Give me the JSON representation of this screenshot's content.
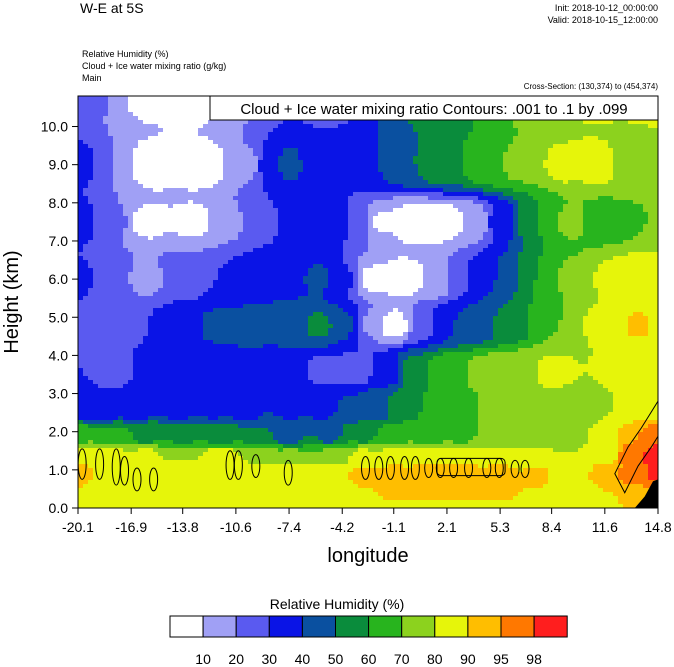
{
  "header": {
    "title": "W-E at 5S",
    "init": "Init: 2018-10-12_00:00:00",
    "valid": "Valid: 2018-10-15_12:00:00",
    "fields": [
      "Relative Humidity   (%)",
      "Cloud + Ice water mixing ratio   (g/kg)",
      "Main"
    ],
    "cross_section": "Cross-Section: (130,374) to (454,374)"
  },
  "chart_data": {
    "type": "heatmap",
    "title": "",
    "xlabel": "longitude",
    "ylabel": "Height (km)",
    "x_ticks": [
      "-20.1",
      "-16.9",
      "-13.8",
      "-10.6",
      "-7.4",
      "-4.2",
      "-1.1",
      "2.1",
      "5.3",
      "8.4",
      "11.6",
      "14.8"
    ],
    "y_ticks": [
      "0.0",
      "1.0",
      "2.0",
      "3.0",
      "4.0",
      "5.0",
      "6.0",
      "7.0",
      "8.0",
      "9.0",
      "10.0"
    ],
    "xlim": [
      -20.1,
      14.8
    ],
    "ylim": [
      0,
      10.8
    ],
    "contour_label": "Cloud + Ice water mixing ratio Contours: .001 to .1 by .099",
    "colorbar": {
      "title": "Relative Humidity  (%)",
      "levels": [
        "10",
        "20",
        "30",
        "40",
        "50",
        "60",
        "70",
        "80",
        "90",
        "95",
        "98"
      ],
      "colors": [
        "#ffffff",
        "#a0a0f5",
        "#5a5af0",
        "#0a14e6",
        "#0a50a0",
        "#0a8c3c",
        "#28b41e",
        "#8cd21e",
        "#e6f50a",
        "#ffbe00",
        "#ff7800",
        "#ff1e1e"
      ]
    },
    "fields": [
      {
        "x": -20.1,
        "y": 10.8,
        "v": 30
      },
      {
        "x": -18.0,
        "y": 10.8,
        "v": 20
      },
      {
        "x": -16.5,
        "y": 10.8,
        "v": 5
      },
      {
        "x": -13.0,
        "y": 10.8,
        "v": 5
      },
      {
        "x": -10.6,
        "y": 10.8,
        "v": 10
      },
      {
        "x": -9.0,
        "y": 10.8,
        "v": 25
      },
      {
        "x": -7.4,
        "y": 10.8,
        "v": 35
      },
      {
        "x": -5.5,
        "y": 10.8,
        "v": 25
      },
      {
        "x": -4.5,
        "y": 10.8,
        "v": 22
      },
      {
        "x": -3.0,
        "y": 10.8,
        "v": 35
      },
      {
        "x": -1.5,
        "y": 10.8,
        "v": 45
      },
      {
        "x": 0.5,
        "y": 10.8,
        "v": 60
      },
      {
        "x": 2.0,
        "y": 10.8,
        "v": 48
      },
      {
        "x": 4.0,
        "y": 10.8,
        "v": 62
      },
      {
        "x": 5.8,
        "y": 10.8,
        "v": 72
      },
      {
        "x": 8.0,
        "y": 10.8,
        "v": 80
      },
      {
        "x": 11.0,
        "y": 10.8,
        "v": 82
      },
      {
        "x": 14.8,
        "y": 10.8,
        "v": 85
      },
      {
        "x": -20.1,
        "y": 9.0,
        "v": 35
      },
      {
        "x": -18.0,
        "y": 9.0,
        "v": 20
      },
      {
        "x": -16.0,
        "y": 9.0,
        "v": 5
      },
      {
        "x": -12.5,
        "y": 9.0,
        "v": 5
      },
      {
        "x": -10.0,
        "y": 9.0,
        "v": 15
      },
      {
        "x": -8.5,
        "y": 9.0,
        "v": 35
      },
      {
        "x": -7.4,
        "y": 9.0,
        "v": 45
      },
      {
        "x": -6.0,
        "y": 9.0,
        "v": 35
      },
      {
        "x": -4.2,
        "y": 9.0,
        "v": 30
      },
      {
        "x": -2.0,
        "y": 9.0,
        "v": 40
      },
      {
        "x": 0.0,
        "y": 9.0,
        "v": 50
      },
      {
        "x": 2.0,
        "y": 9.0,
        "v": 58
      },
      {
        "x": 4.5,
        "y": 9.0,
        "v": 68
      },
      {
        "x": 6.5,
        "y": 9.0,
        "v": 72
      },
      {
        "x": 9.0,
        "y": 9.0,
        "v": 82
      },
      {
        "x": 11.6,
        "y": 9.0,
        "v": 85
      },
      {
        "x": 13.0,
        "y": 9.0,
        "v": 70
      },
      {
        "x": 14.8,
        "y": 9.0,
        "v": 75
      },
      {
        "x": -20.1,
        "y": 7.5,
        "v": 35
      },
      {
        "x": -18.0,
        "y": 7.5,
        "v": 22
      },
      {
        "x": -16.0,
        "y": 7.5,
        "v": 8
      },
      {
        "x": -13.0,
        "y": 7.5,
        "v": 8
      },
      {
        "x": -11.0,
        "y": 7.5,
        "v": 18
      },
      {
        "x": -9.0,
        "y": 7.5,
        "v": 28
      },
      {
        "x": -7.0,
        "y": 7.5,
        "v": 35
      },
      {
        "x": -5.0,
        "y": 7.5,
        "v": 38
      },
      {
        "x": -3.0,
        "y": 7.5,
        "v": 28
      },
      {
        "x": -2.0,
        "y": 7.5,
        "v": 8
      },
      {
        "x": 0.0,
        "y": 7.5,
        "v": 5
      },
      {
        "x": 2.0,
        "y": 7.5,
        "v": 5
      },
      {
        "x": 3.8,
        "y": 7.5,
        "v": 12
      },
      {
        "x": 5.3,
        "y": 7.5,
        "v": 35
      },
      {
        "x": 7.5,
        "y": 7.5,
        "v": 60
      },
      {
        "x": 9.5,
        "y": 7.5,
        "v": 72
      },
      {
        "x": 11.6,
        "y": 7.5,
        "v": 65
      },
      {
        "x": 14.8,
        "y": 7.5,
        "v": 70
      },
      {
        "x": -20.1,
        "y": 6.0,
        "v": 32
      },
      {
        "x": -18.0,
        "y": 6.0,
        "v": 22
      },
      {
        "x": -16.0,
        "y": 6.0,
        "v": 18
      },
      {
        "x": -13.8,
        "y": 6.0,
        "v": 25
      },
      {
        "x": -11.5,
        "y": 6.0,
        "v": 30
      },
      {
        "x": -9.5,
        "y": 6.0,
        "v": 35
      },
      {
        "x": -7.4,
        "y": 6.0,
        "v": 38
      },
      {
        "x": -5.5,
        "y": 6.0,
        "v": 42
      },
      {
        "x": -4.2,
        "y": 6.0,
        "v": 32
      },
      {
        "x": -2.5,
        "y": 6.0,
        "v": 8
      },
      {
        "x": -0.5,
        "y": 6.0,
        "v": 5
      },
      {
        "x": 1.5,
        "y": 6.0,
        "v": 10
      },
      {
        "x": 3.0,
        "y": 6.0,
        "v": 30
      },
      {
        "x": 5.0,
        "y": 6.0,
        "v": 40
      },
      {
        "x": 7.5,
        "y": 6.0,
        "v": 60
      },
      {
        "x": 9.5,
        "y": 6.0,
        "v": 72
      },
      {
        "x": 12.0,
        "y": 6.0,
        "v": 82
      },
      {
        "x": 13.8,
        "y": 6.0,
        "v": 88
      },
      {
        "x": 14.8,
        "y": 6.0,
        "v": 80
      },
      {
        "x": -20.1,
        "y": 4.8,
        "v": 30
      },
      {
        "x": -18.0,
        "y": 4.8,
        "v": 22
      },
      {
        "x": -16.0,
        "y": 4.8,
        "v": 30
      },
      {
        "x": -13.8,
        "y": 4.8,
        "v": 38
      },
      {
        "x": -11.5,
        "y": 4.8,
        "v": 42
      },
      {
        "x": -9.5,
        "y": 4.8,
        "v": 43
      },
      {
        "x": -7.4,
        "y": 4.8,
        "v": 45
      },
      {
        "x": -5.5,
        "y": 4.8,
        "v": 52
      },
      {
        "x": -4.0,
        "y": 4.8,
        "v": 42
      },
      {
        "x": -2.5,
        "y": 4.8,
        "v": 18
      },
      {
        "x": -1.1,
        "y": 4.8,
        "v": 5
      },
      {
        "x": 0.8,
        "y": 4.8,
        "v": 28
      },
      {
        "x": 2.1,
        "y": 4.8,
        "v": 40
      },
      {
        "x": 4.0,
        "y": 4.8,
        "v": 45
      },
      {
        "x": 6.0,
        "y": 4.8,
        "v": 55
      },
      {
        "x": 8.4,
        "y": 4.8,
        "v": 70
      },
      {
        "x": 11.6,
        "y": 4.8,
        "v": 82
      },
      {
        "x": 13.8,
        "y": 4.8,
        "v": 92
      },
      {
        "x": 14.8,
        "y": 4.8,
        "v": 85
      },
      {
        "x": -20.1,
        "y": 3.6,
        "v": 30
      },
      {
        "x": -18.0,
        "y": 3.6,
        "v": 25
      },
      {
        "x": -16.0,
        "y": 3.6,
        "v": 32
      },
      {
        "x": -13.8,
        "y": 3.6,
        "v": 32
      },
      {
        "x": -11.5,
        "y": 3.6,
        "v": 35
      },
      {
        "x": -9.0,
        "y": 3.6,
        "v": 36
      },
      {
        "x": -7.4,
        "y": 3.6,
        "v": 32
      },
      {
        "x": -5.5,
        "y": 3.6,
        "v": 28
      },
      {
        "x": -3.5,
        "y": 3.6,
        "v": 25
      },
      {
        "x": -1.5,
        "y": 3.6,
        "v": 32
      },
      {
        "x": 0.0,
        "y": 3.6,
        "v": 55
      },
      {
        "x": 2.1,
        "y": 3.6,
        "v": 68
      },
      {
        "x": 4.5,
        "y": 3.6,
        "v": 74
      },
      {
        "x": 6.5,
        "y": 3.6,
        "v": 78
      },
      {
        "x": 8.4,
        "y": 3.6,
        "v": 82
      },
      {
        "x": 11.0,
        "y": 3.6,
        "v": 80
      },
      {
        "x": 13.0,
        "y": 3.6,
        "v": 82
      },
      {
        "x": 14.8,
        "y": 3.6,
        "v": 82
      },
      {
        "x": -20.1,
        "y": 2.6,
        "v": 35
      },
      {
        "x": -18.5,
        "y": 2.6,
        "v": 30
      },
      {
        "x": -16.5,
        "y": 2.6,
        "v": 33
      },
      {
        "x": -14.0,
        "y": 2.6,
        "v": 35
      },
      {
        "x": -12.0,
        "y": 2.6,
        "v": 38
      },
      {
        "x": -10.0,
        "y": 2.6,
        "v": 36
      },
      {
        "x": -7.4,
        "y": 2.6,
        "v": 38
      },
      {
        "x": -5.5,
        "y": 2.6,
        "v": 38
      },
      {
        "x": -3.5,
        "y": 2.6,
        "v": 40
      },
      {
        "x": -2.0,
        "y": 2.6,
        "v": 46
      },
      {
        "x": -0.5,
        "y": 2.6,
        "v": 58
      },
      {
        "x": 2.1,
        "y": 2.6,
        "v": 65
      },
      {
        "x": 4.5,
        "y": 2.6,
        "v": 70
      },
      {
        "x": 6.5,
        "y": 2.6,
        "v": 75
      },
      {
        "x": 8.4,
        "y": 2.6,
        "v": 78
      },
      {
        "x": 10.5,
        "y": 2.6,
        "v": 75
      },
      {
        "x": 12.5,
        "y": 2.6,
        "v": 80
      },
      {
        "x": 14.8,
        "y": 2.6,
        "v": 88
      },
      {
        "x": -20.1,
        "y": 1.9,
        "v": 68
      },
      {
        "x": -18.0,
        "y": 1.9,
        "v": 62
      },
      {
        "x": -16.0,
        "y": 1.9,
        "v": 58
      },
      {
        "x": -13.8,
        "y": 1.9,
        "v": 55
      },
      {
        "x": -11.5,
        "y": 1.9,
        "v": 55
      },
      {
        "x": -9.0,
        "y": 1.9,
        "v": 50
      },
      {
        "x": -7.4,
        "y": 1.9,
        "v": 45
      },
      {
        "x": -5.0,
        "y": 1.9,
        "v": 48
      },
      {
        "x": -3.0,
        "y": 1.9,
        "v": 58
      },
      {
        "x": -1.1,
        "y": 1.9,
        "v": 63
      },
      {
        "x": 1.0,
        "y": 1.9,
        "v": 65
      },
      {
        "x": 3.0,
        "y": 1.9,
        "v": 68
      },
      {
        "x": 5.3,
        "y": 1.9,
        "v": 70
      },
      {
        "x": 7.5,
        "y": 1.9,
        "v": 72
      },
      {
        "x": 9.5,
        "y": 1.9,
        "v": 75
      },
      {
        "x": 11.6,
        "y": 1.9,
        "v": 82
      },
      {
        "x": 13.2,
        "y": 1.9,
        "v": 95
      },
      {
        "x": 14.8,
        "y": 1.9,
        "v": 98
      },
      {
        "x": -20.1,
        "y": 1.35,
        "v": 88
      },
      {
        "x": -18.0,
        "y": 1.35,
        "v": 85
      },
      {
        "x": -16.0,
        "y": 1.35,
        "v": 82
      },
      {
        "x": -13.8,
        "y": 1.35,
        "v": 80
      },
      {
        "x": -11.5,
        "y": 1.35,
        "v": 85
      },
      {
        "x": -9.0,
        "y": 1.35,
        "v": 78
      },
      {
        "x": -7.4,
        "y": 1.35,
        "v": 72
      },
      {
        "x": -5.0,
        "y": 1.35,
        "v": 72
      },
      {
        "x": -3.0,
        "y": 1.35,
        "v": 82
      },
      {
        "x": -1.1,
        "y": 1.35,
        "v": 85
      },
      {
        "x": 1.0,
        "y": 1.35,
        "v": 88
      },
      {
        "x": 3.0,
        "y": 1.35,
        "v": 85
      },
      {
        "x": 5.3,
        "y": 1.35,
        "v": 85
      },
      {
        "x": 7.5,
        "y": 1.35,
        "v": 82
      },
      {
        "x": 9.5,
        "y": 1.35,
        "v": 80
      },
      {
        "x": 11.6,
        "y": 1.35,
        "v": 88
      },
      {
        "x": 13.2,
        "y": 1.35,
        "v": 98
      },
      {
        "x": 14.8,
        "y": 1.35,
        "v": 99
      },
      {
        "x": -20.1,
        "y": 0.9,
        "v": 92
      },
      {
        "x": -18.0,
        "y": 0.9,
        "v": 90
      },
      {
        "x": -16.0,
        "y": 0.9,
        "v": 88
      },
      {
        "x": -13.8,
        "y": 0.9,
        "v": 87
      },
      {
        "x": -11.5,
        "y": 0.9,
        "v": 90
      },
      {
        "x": -9.0,
        "y": 0.9,
        "v": 88
      },
      {
        "x": -7.4,
        "y": 0.9,
        "v": 90
      },
      {
        "x": -5.0,
        "y": 0.9,
        "v": 88
      },
      {
        "x": -3.0,
        "y": 0.9,
        "v": 92
      },
      {
        "x": -1.1,
        "y": 0.9,
        "v": 94
      },
      {
        "x": 1.0,
        "y": 0.9,
        "v": 95
      },
      {
        "x": 3.0,
        "y": 0.9,
        "v": 95
      },
      {
        "x": 5.3,
        "y": 0.9,
        "v": 94
      },
      {
        "x": 7.5,
        "y": 0.9,
        "v": 92
      },
      {
        "x": 9.5,
        "y": 0.9,
        "v": 88
      },
      {
        "x": 11.6,
        "y": 0.9,
        "v": 92
      },
      {
        "x": 13.2,
        "y": 0.9,
        "v": 97
      },
      {
        "x": 14.8,
        "y": 0.9,
        "v": 99
      },
      {
        "x": -20.1,
        "y": 0.45,
        "v": 90
      },
      {
        "x": -18.0,
        "y": 0.45,
        "v": 86
      },
      {
        "x": -16.0,
        "y": 0.45,
        "v": 84
      },
      {
        "x": -13.8,
        "y": 0.45,
        "v": 82
      },
      {
        "x": -11.5,
        "y": 0.45,
        "v": 86
      },
      {
        "x": -9.0,
        "y": 0.45,
        "v": 86
      },
      {
        "x": -7.4,
        "y": 0.45,
        "v": 84
      },
      {
        "x": -5.0,
        "y": 0.45,
        "v": 86
      },
      {
        "x": -3.0,
        "y": 0.45,
        "v": 90
      },
      {
        "x": -1.1,
        "y": 0.45,
        "v": 92
      },
      {
        "x": 1.0,
        "y": 0.45,
        "v": 92
      },
      {
        "x": 3.0,
        "y": 0.45,
        "v": 93
      },
      {
        "x": 5.3,
        "y": 0.45,
        "v": 92
      },
      {
        "x": 7.5,
        "y": 0.45,
        "v": 90
      },
      {
        "x": 9.5,
        "y": 0.45,
        "v": 86
      },
      {
        "x": 11.6,
        "y": 0.45,
        "v": 90
      },
      {
        "x": 13.2,
        "y": 0.45,
        "v": 94
      },
      {
        "x": 14.8,
        "y": 0.45,
        "v": 95
      },
      {
        "x": -20.1,
        "y": 0.0,
        "v": 86
      },
      {
        "x": -18.0,
        "y": 0.0,
        "v": 82
      },
      {
        "x": -16.0,
        "y": 0.0,
        "v": 80
      },
      {
        "x": -13.8,
        "y": 0.0,
        "v": 80
      },
      {
        "x": -11.5,
        "y": 0.0,
        "v": 82
      },
      {
        "x": -9.0,
        "y": 0.0,
        "v": 82
      },
      {
        "x": -7.4,
        "y": 0.0,
        "v": 80
      },
      {
        "x": -5.0,
        "y": 0.0,
        "v": 82
      },
      {
        "x": -3.0,
        "y": 0.0,
        "v": 86
      },
      {
        "x": -1.1,
        "y": 0.0,
        "v": 88
      },
      {
        "x": 1.0,
        "y": 0.0,
        "v": 88
      },
      {
        "x": 3.0,
        "y": 0.0,
        "v": 88
      },
      {
        "x": 5.3,
        "y": 0.0,
        "v": 88
      },
      {
        "x": 7.5,
        "y": 0.0,
        "v": 86
      },
      {
        "x": 9.5,
        "y": 0.0,
        "v": 82
      },
      {
        "x": 11.6,
        "y": 0.0,
        "v": 86
      },
      {
        "x": 13.2,
        "y": 0.0,
        "v": 90
      },
      {
        "x": 14.8,
        "y": 0.0,
        "v": 92
      }
    ],
    "cloud_contours": [
      {
        "x": -19.85,
        "y0": 0.75,
        "y1": 1.55
      },
      {
        "x": -18.8,
        "y0": 0.75,
        "y1": 1.55
      },
      {
        "x": -17.8,
        "y0": 0.6,
        "y1": 1.55
      },
      {
        "x": -17.3,
        "y0": 0.6,
        "y1": 1.35
      },
      {
        "x": -16.55,
        "y0": 0.45,
        "y1": 1.05
      },
      {
        "x": -15.55,
        "y0": 0.45,
        "y1": 1.05
      },
      {
        "x": -10.95,
        "y0": 0.75,
        "y1": 1.5
      },
      {
        "x": -10.45,
        "y0": 0.75,
        "y1": 1.5
      },
      {
        "x": -9.4,
        "y0": 0.8,
        "y1": 1.4
      },
      {
        "x": -7.45,
        "y0": 0.6,
        "y1": 1.25
      },
      {
        "x": -2.8,
        "y0": 0.75,
        "y1": 1.35
      },
      {
        "x": -2.0,
        "y0": 0.75,
        "y1": 1.35
      },
      {
        "x": -1.3,
        "y0": 0.75,
        "y1": 1.35
      },
      {
        "x": -0.45,
        "y0": 0.75,
        "y1": 1.35
      },
      {
        "x": 0.2,
        "y0": 0.75,
        "y1": 1.35
      },
      {
        "x": 1.0,
        "y0": 0.8,
        "y1": 1.3
      },
      {
        "x": 1.7,
        "y0": 0.8,
        "y1": 1.3
      },
      {
        "x": 2.5,
        "y0": 0.8,
        "y1": 1.3
      },
      {
        "x": 3.4,
        "y0": 0.8,
        "y1": 1.3
      },
      {
        "x": 4.5,
        "y0": 0.8,
        "y1": 1.3
      },
      {
        "x": 5.25,
        "y0": 0.8,
        "y1": 1.3
      },
      {
        "x": 6.2,
        "y0": 0.8,
        "y1": 1.25
      },
      {
        "x": 6.8,
        "y0": 0.8,
        "y1": 1.25
      }
    ],
    "cloud_box": {
      "x0": 1.5,
      "x1": 5.6,
      "y0": 0.85,
      "y1": 1.3
    },
    "cloud_slope": [
      [
        12.2,
        0.9
      ],
      [
        13.0,
        1.6
      ],
      [
        13.8,
        2.1
      ],
      [
        14.8,
        2.8
      ]
    ],
    "terrain": [
      [
        13.4,
        0.0
      ],
      [
        14.0,
        0.3
      ],
      [
        14.5,
        0.7
      ],
      [
        14.8,
        0.75
      ],
      [
        14.8,
        0.0
      ]
    ]
  }
}
